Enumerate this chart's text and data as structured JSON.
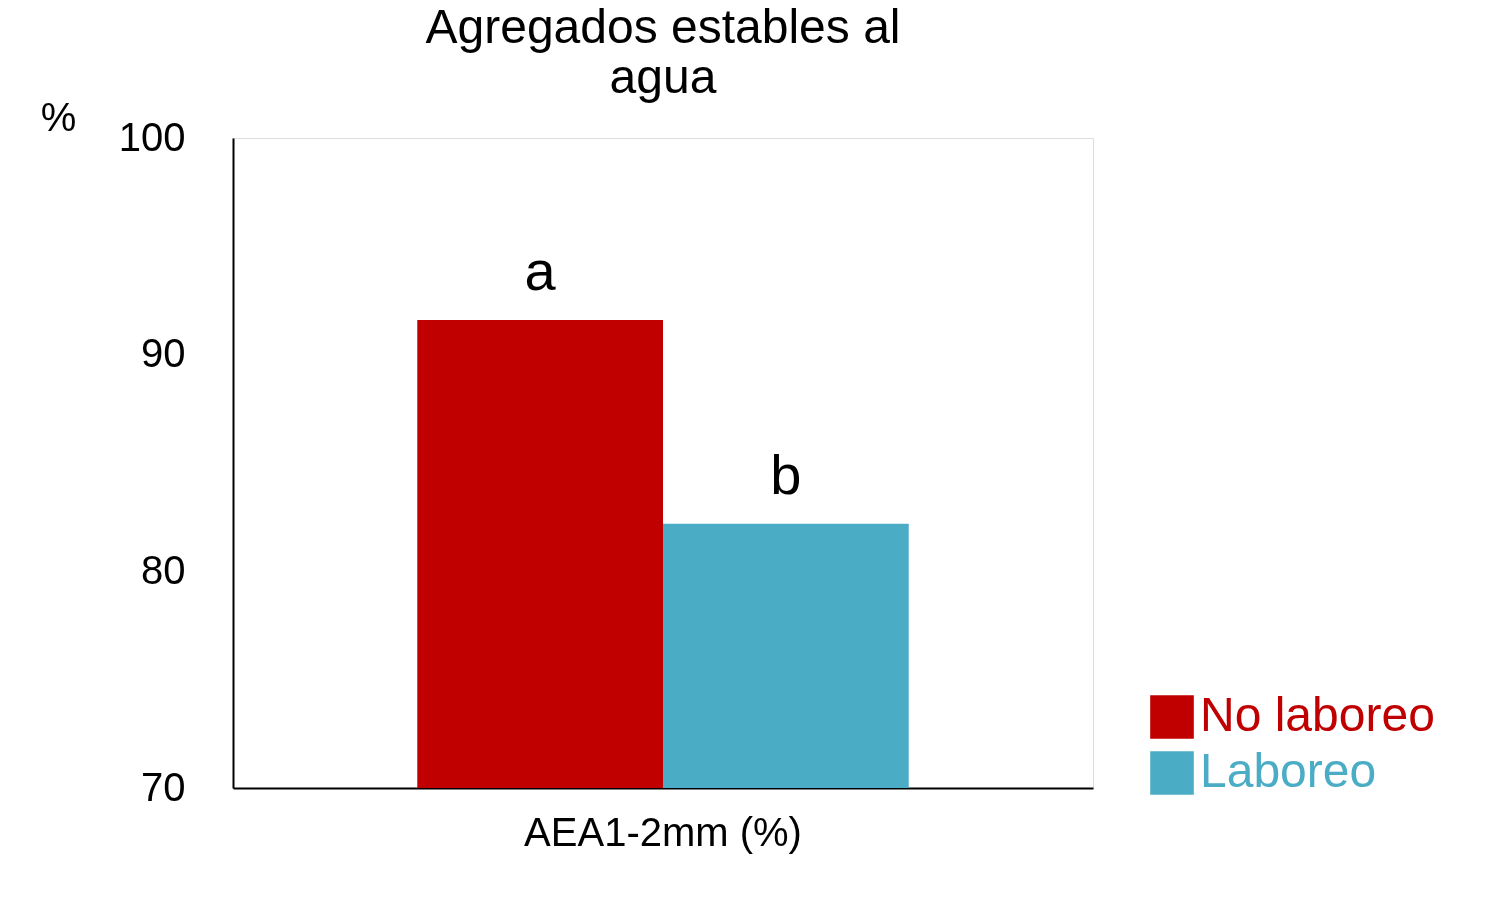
{
  "chart_data": {
    "type": "bar",
    "title": "Agregados estables al agua",
    "ylabel": "%",
    "categories": [
      "AEA1-2mm (%)"
    ],
    "series": [
      {
        "name": "No laboreo",
        "color": "#c00000",
        "values": [
          91.6
        ]
      },
      {
        "name": "Laboreo",
        "color": "#4bacc6",
        "values": [
          82.2
        ]
      }
    ],
    "ylim": [
      70,
      100
    ],
    "yticks": [
      70,
      80,
      90,
      100
    ],
    "grid": false,
    "legend": "bottom right",
    "annotations": [
      {
        "text": "a",
        "x": "AEA1-2mm (%)",
        "y": 91.6
      },
      {
        "text": "b",
        "x": "AEA1-2mm (%)",
        "y": 82.2
      }
    ]
  }
}
